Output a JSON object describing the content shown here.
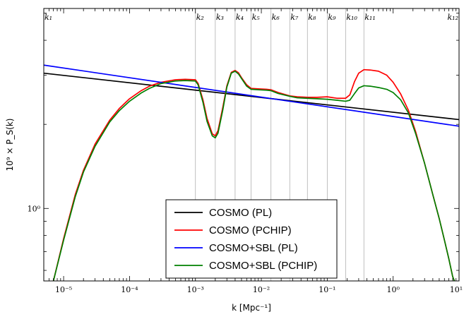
{
  "chart_data": {
    "type": "line",
    "title": "",
    "xlabel": "k [Mpc⁻¹]",
    "ylabel": "10⁹ × P_S(k)",
    "xscale": "log",
    "yscale": "log",
    "xlim": [
      5e-06,
      10
    ],
    "ylim": [
      0.55,
      5.2
    ],
    "x_ticks": [
      {
        "value": 1e-05,
        "label": "10⁻⁵"
      },
      {
        "value": 0.0001,
        "label": "10⁻⁴"
      },
      {
        "value": 0.001,
        "label": "10⁻³"
      },
      {
        "value": 0.01,
        "label": "10⁻²"
      },
      {
        "value": 0.1,
        "label": "10⁻¹"
      },
      {
        "value": 1,
        "label": "10⁰"
      },
      {
        "value": 10,
        "label": "10¹"
      }
    ],
    "y_ticks": [
      {
        "value": 1,
        "label": "10⁰"
      }
    ],
    "knots": [
      {
        "k": 5e-06,
        "label": "k₁"
      },
      {
        "k": 0.001,
        "label": "k₂"
      },
      {
        "k": 0.002,
        "label": "k₃"
      },
      {
        "k": 0.004,
        "label": "k₄"
      },
      {
        "k": 0.007,
        "label": "k₅"
      },
      {
        "k": 0.014,
        "label": "k₆"
      },
      {
        "k": 0.027,
        "label": "k₇"
      },
      {
        "k": 0.05,
        "label": "k₈"
      },
      {
        "k": 0.1,
        "label": "k₉"
      },
      {
        "k": 0.19,
        "label": "k₁₀"
      },
      {
        "k": 0.36,
        "label": "k₁₁"
      },
      {
        "k": 10,
        "label": "k₁₂"
      }
    ],
    "legend_position": "bottom-center",
    "series": [
      {
        "name": "COSMO (PL)",
        "color": "#000000",
        "x": [
          5e-06,
          10
        ],
        "y": [
          3.05,
          2.08
        ]
      },
      {
        "name": "COSMO (PCHIP)",
        "color": "#ff0000",
        "x": [
          7e-06,
          1e-05,
          1.5e-05,
          2e-05,
          3e-05,
          5e-05,
          7e-05,
          0.0001,
          0.00015,
          0.0002,
          0.0003,
          0.0005,
          0.0007,
          0.001,
          0.0011,
          0.0013,
          0.0015,
          0.0018,
          0.002,
          0.0022,
          0.0026,
          0.003,
          0.0035,
          0.004,
          0.0045,
          0.005,
          0.006,
          0.007,
          0.009,
          0.012,
          0.014,
          0.018,
          0.027,
          0.035,
          0.05,
          0.07,
          0.1,
          0.14,
          0.19,
          0.22,
          0.26,
          0.3,
          0.36,
          0.45,
          0.6,
          0.8,
          1.0,
          1.3,
          1.7,
          2.2,
          3,
          4,
          5,
          6,
          7,
          8,
          8.5
        ],
        "y": [
          0.55,
          0.78,
          1.12,
          1.37,
          1.7,
          2.07,
          2.28,
          2.47,
          2.64,
          2.74,
          2.83,
          2.89,
          2.9,
          2.89,
          2.8,
          2.45,
          2.1,
          1.85,
          1.82,
          1.9,
          2.3,
          2.75,
          3.07,
          3.12,
          3.06,
          2.94,
          2.77,
          2.69,
          2.68,
          2.67,
          2.66,
          2.6,
          2.53,
          2.51,
          2.5,
          2.5,
          2.51,
          2.48,
          2.48,
          2.55,
          2.85,
          3.05,
          3.14,
          3.13,
          3.1,
          3.0,
          2.83,
          2.57,
          2.25,
          1.88,
          1.45,
          1.12,
          0.92,
          0.77,
          0.66,
          0.57,
          0.54
        ]
      },
      {
        "name": "COSMO+SBL (PL)",
        "color": "#0000ff",
        "x": [
          5e-06,
          10
        ],
        "y": [
          3.26,
          1.97
        ]
      },
      {
        "name": "COSMO+SBL (PCHIP)",
        "color": "#008000",
        "x": [
          7e-06,
          1e-05,
          1.5e-05,
          2e-05,
          3e-05,
          5e-05,
          7e-05,
          0.0001,
          0.00015,
          0.0002,
          0.0003,
          0.0005,
          0.0007,
          0.001,
          0.0011,
          0.0013,
          0.0015,
          0.0018,
          0.002,
          0.0022,
          0.0026,
          0.003,
          0.0035,
          0.004,
          0.0045,
          0.005,
          0.006,
          0.007,
          0.009,
          0.012,
          0.014,
          0.018,
          0.027,
          0.035,
          0.05,
          0.07,
          0.1,
          0.14,
          0.19,
          0.22,
          0.26,
          0.3,
          0.36,
          0.45,
          0.6,
          0.8,
          1.0,
          1.3,
          1.7,
          2.2,
          3,
          4,
          5,
          6,
          7,
          8,
          8.5
        ],
        "y": [
          0.55,
          0.77,
          1.1,
          1.35,
          1.67,
          2.04,
          2.24,
          2.42,
          2.59,
          2.69,
          2.8,
          2.86,
          2.87,
          2.86,
          2.77,
          2.4,
          2.05,
          1.82,
          1.79,
          1.86,
          2.25,
          2.72,
          3.05,
          3.1,
          3.03,
          2.92,
          2.74,
          2.67,
          2.66,
          2.65,
          2.64,
          2.58,
          2.52,
          2.49,
          2.48,
          2.47,
          2.46,
          2.44,
          2.42,
          2.44,
          2.58,
          2.7,
          2.75,
          2.74,
          2.71,
          2.67,
          2.6,
          2.45,
          2.2,
          1.85,
          1.45,
          1.12,
          0.92,
          0.77,
          0.66,
          0.57,
          0.54
        ]
      }
    ]
  }
}
